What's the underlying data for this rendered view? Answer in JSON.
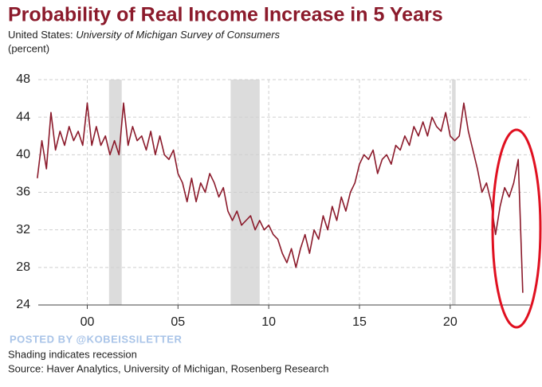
{
  "chart_data": {
    "type": "line",
    "title": "Probability of Real Income Increase in 5 Years",
    "subtitle_prefix": "United States:",
    "subtitle": "University of Michigan Survey of Consumers",
    "unit_label": "(percent)",
    "watermark": "POSTED BY @KOBEISSILETTER",
    "notes": [
      "Shading indicates recession",
      "Source: Haver Analytics, University of Michigan, Rosenberg Research"
    ],
    "xlim": [
      1997.3,
      2024.4
    ],
    "xticks": [
      {
        "value": 2000,
        "label": "00"
      },
      {
        "value": 2005,
        "label": "05"
      },
      {
        "value": 2010,
        "label": "10"
      },
      {
        "value": 2015,
        "label": "15"
      },
      {
        "value": 2020,
        "label": "20"
      }
    ],
    "ylim": [
      24,
      48
    ],
    "yticks": [
      24,
      28,
      32,
      36,
      40,
      44,
      48
    ],
    "grid": true,
    "recessions": [
      [
        2001.2,
        2001.9
      ],
      [
        2007.9,
        2009.5
      ],
      [
        2020.1,
        2020.3
      ]
    ],
    "recession_color": "#dcdcdc",
    "x": [
      1997.25,
      1997.5,
      1997.75,
      1998,
      1998.25,
      1998.5,
      1998.75,
      1999,
      1999.25,
      1999.5,
      1999.75,
      2000,
      2000.25,
      2000.5,
      2000.75,
      2001,
      2001.25,
      2001.5,
      2001.75,
      2002,
      2002.25,
      2002.5,
      2002.75,
      2003,
      2003.25,
      2003.5,
      2003.75,
      2004,
      2004.25,
      2004.5,
      2004.75,
      2005,
      2005.25,
      2005.5,
      2005.75,
      2006,
      2006.25,
      2006.5,
      2006.75,
      2007,
      2007.25,
      2007.5,
      2007.75,
      2008,
      2008.25,
      2008.5,
      2008.75,
      2009,
      2009.25,
      2009.5,
      2009.75,
      2010,
      2010.25,
      2010.5,
      2010.75,
      2011,
      2011.25,
      2011.5,
      2011.75,
      2012,
      2012.25,
      2012.5,
      2012.75,
      2013,
      2013.25,
      2013.5,
      2013.75,
      2014,
      2014.25,
      2014.5,
      2014.75,
      2015,
      2015.25,
      2015.5,
      2015.75,
      2016,
      2016.25,
      2016.5,
      2016.75,
      2017,
      2017.25,
      2017.5,
      2017.75,
      2018,
      2018.25,
      2018.5,
      2018.75,
      2019,
      2019.25,
      2019.5,
      2019.75,
      2020,
      2020.25,
      2020.5,
      2020.75,
      2021,
      2021.25,
      2021.5,
      2021.75,
      2022,
      2022.25,
      2022.5,
      2022.75,
      2023,
      2023.25,
      2023.5,
      2023.75,
      2024
    ],
    "series": [
      {
        "name": "Probability of Real Income Increase in 5 Years",
        "color": "#8b1a2b",
        "values": [
          37.5,
          41.5,
          38.5,
          44.5,
          40.5,
          42.5,
          41,
          43,
          41.5,
          42.5,
          41,
          45.5,
          41,
          43,
          41,
          42,
          40,
          41.5,
          40,
          45.5,
          41,
          43,
          41.5,
          42,
          40.5,
          42.5,
          40,
          42,
          40,
          39.5,
          40.5,
          38,
          37,
          35,
          37.5,
          35,
          37,
          36,
          38,
          37,
          35.5,
          36.5,
          34,
          33,
          34,
          32.5,
          33,
          33.5,
          32,
          33,
          32,
          32.5,
          31.5,
          31,
          29.5,
          28.5,
          30,
          28,
          30,
          31.5,
          29.5,
          32,
          31,
          33.5,
          32,
          34.5,
          33,
          35.5,
          34,
          36,
          37,
          39,
          40,
          39.5,
          40.5,
          38,
          39.5,
          40,
          39,
          41,
          40.5,
          42,
          41,
          43,
          42,
          43.5,
          42,
          44,
          43,
          42.5,
          44.5,
          42,
          41.5,
          42,
          45.5,
          42.5,
          40.5,
          38.5,
          36,
          37,
          35,
          31.5,
          34.5,
          36.5,
          35.5,
          37,
          39.5,
          25.3
        ]
      }
    ]
  }
}
